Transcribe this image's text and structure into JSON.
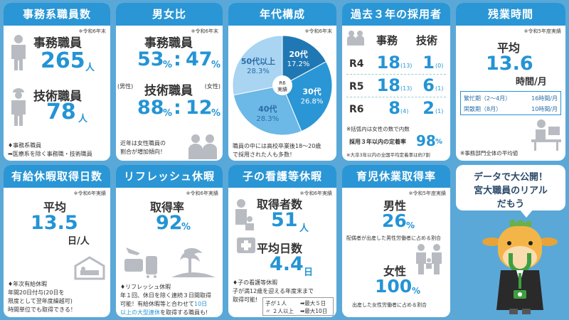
{
  "card1": {
    "title": "事務系職員数",
    "note": "※令和6年末",
    "label1": "事務職員",
    "value1": "265",
    "unit1": "人",
    "label2": "技術職員",
    "value2": "78",
    "unit2": "人",
    "foot1": "事務系職員",
    "foot2": "➡医療系を除く事務職・技術職員"
  },
  "card2": {
    "title": "男女比",
    "note": "※令和6年末",
    "label1": "事務職員",
    "ratio1_left": "53",
    "ratio1_right": "47",
    "pct": "%",
    "colon": ":",
    "male": "(男性)",
    "female": "(女性)",
    "label2": "技術職員",
    "ratio2_left": "88",
    "ratio2_right": "12",
    "foot1": "近年は女性職員の",
    "foot2": "割合が増加傾向！"
  },
  "card3": {
    "title": "年代構成",
    "note": "※令和6年末",
    "center1": "R6",
    "center2": "実績",
    "segments": [
      {
        "label": "20代",
        "pct": "17.2%",
        "value": 17.2,
        "color": "#1f78b4"
      },
      {
        "label": "30代",
        "pct": "26.8%",
        "value": 26.8,
        "color": "#2a96d5"
      },
      {
        "label": "40代",
        "pct": "28.3%",
        "value": 28.3,
        "color": "#6cb8e6"
      },
      {
        "label": "50代以上",
        "pct": "28.3%",
        "value": 28.3,
        "color": "#a9d4f2"
      }
    ],
    "foot1": "職員の中には高校卒業後18～20歳",
    "foot2": "で採用された人も多数！"
  },
  "card4": {
    "title": "過去３年の採用者",
    "col1": "事務",
    "col2": "技術",
    "rows": [
      {
        "year": "R4",
        "jimu": "18",
        "jimu_f": "(13)",
        "gijutsu": "1",
        "gijutsu_f": "(0)"
      },
      {
        "year": "R5",
        "jimu": "18",
        "jimu_f": "(13)",
        "gijutsu": "6",
        "gijutsu_f": "(1)"
      },
      {
        "year": "R6",
        "jimu": "8",
        "jimu_f": "(4)",
        "gijutsu": "2",
        "gijutsu_f": "(1)"
      }
    ],
    "paren_note": "※括弧内は女性の数で内数",
    "retention_label": "採用３年以内の定着率",
    "retention_value": "98",
    "retention_unit": "%",
    "avg_note": "※大卒3年以内の全国平均定着率は約7割"
  },
  "card5": {
    "title": "残業時間",
    "note": "※令和5年度実績",
    "avg_label": "平均",
    "value": "13.6",
    "unit": "時間/月",
    "busy_label": "繁忙期（2～4月）",
    "busy_value": "16時間/月",
    "quiet_label": "閑散期（8月）",
    "quiet_value": "10時間/月",
    "foot": "※事務部門全体の平均値"
  },
  "card6": {
    "title": "有給休暇取得日数",
    "note": "※令和6年実績",
    "avg_label": "平均",
    "value": "13.5",
    "unit": "日/人",
    "foot_title": "年次有給休暇",
    "foot1": "年間20日付与(20日を",
    "foot2": "限度として翌年度繰越可)",
    "foot3": "時間単位でも取得できる！"
  },
  "card7": {
    "title": "リフレッシュ休暇",
    "note": "※令和6年実績",
    "rate_label": "取得率",
    "value": "92",
    "unit": "%",
    "foot_title": "リフレッシュ休暇",
    "foot1": "年１回、休日を除く連続３日間取得",
    "foot2": "可能！有給休暇等と合わせて",
    "foot2b": "10日",
    "foot3": "以上の大型連休",
    "foot3b": "を取得する職員も!"
  },
  "card8": {
    "title": "子の看護等休暇",
    "note": "※令和6年実績",
    "label1": "取得者数",
    "value1": "51",
    "unit1": "人",
    "label2": "平均日数",
    "value2": "4.4",
    "unit2": "日",
    "foot_title": "子の看護等休暇",
    "foot1": "子が満12歳を迎える年度末まで",
    "foot2": "取得可能!",
    "row1_a": "子が１人",
    "row1_b": "➡最大５日",
    "row2_a": "〃 ２人以上",
    "row2_b": "➡最大10日"
  },
  "card9": {
    "title": "育児休業取得率",
    "note": "※令和5年度実績",
    "male_label": "男性",
    "male_value": "26",
    "male_unit": "%",
    "male_desc": "配偶者が出産した男性労働者に占める割合",
    "female_label": "女性",
    "female_value": "100",
    "female_unit": "%",
    "female_desc": "出産した女性労働者に占める割合"
  },
  "bubble": {
    "line1": "データで大公開！",
    "line2": "宮大職員のリアル",
    "line3": "だもう"
  }
}
